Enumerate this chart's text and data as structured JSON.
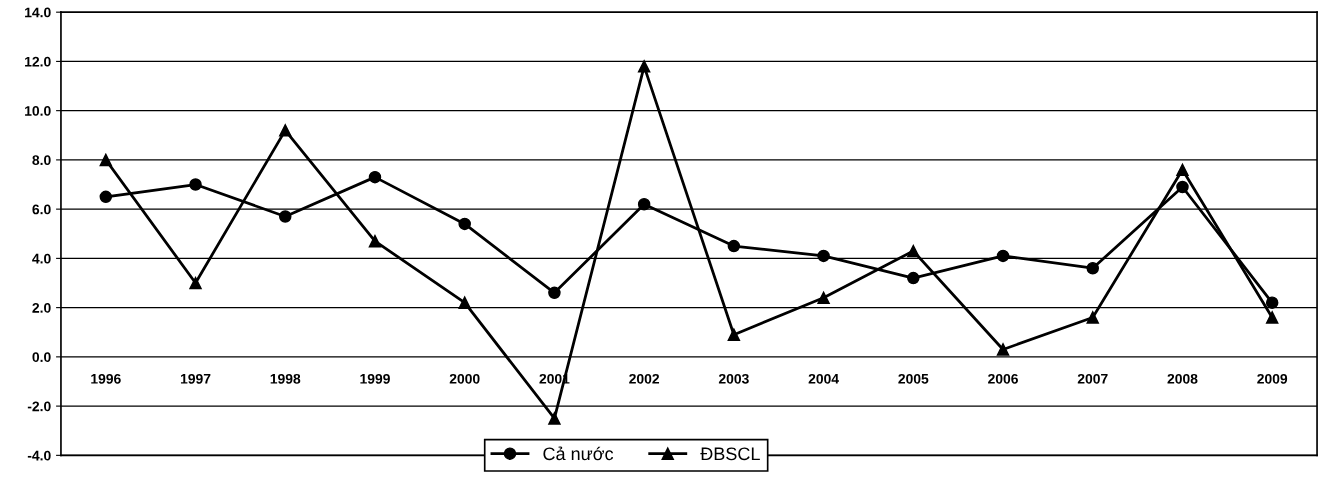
{
  "chart_data": {
    "type": "line",
    "categories": [
      "1996",
      "1997",
      "1998",
      "1999",
      "2000",
      "2001",
      "2002",
      "2003",
      "2004",
      "2005",
      "2006",
      "2007",
      "2008",
      "2009"
    ],
    "series": [
      {
        "name": "Cả nước",
        "color": "#000000",
        "marker": "circle",
        "values": [
          6.5,
          7.0,
          5.7,
          7.3,
          5.4,
          2.6,
          6.2,
          4.5,
          4.1,
          3.2,
          4.1,
          3.6,
          6.9,
          2.2
        ]
      },
      {
        "name": "ĐBSCL",
        "color": "#000000",
        "marker": "triangle",
        "values": [
          8.0,
          3.0,
          9.2,
          4.7,
          2.2,
          -2.5,
          11.8,
          0.9,
          2.4,
          4.3,
          0.3,
          1.6,
          7.6,
          1.6
        ]
      }
    ],
    "ylim": [
      -4,
      14
    ],
    "yticks": [
      {
        "value": -4,
        "label": "-4.0"
      },
      {
        "value": -2,
        "label": "-2.0"
      },
      {
        "value": 0,
        "label": "0.0"
      },
      {
        "value": 2,
        "label": "2.0"
      },
      {
        "value": 4,
        "label": "4.0"
      },
      {
        "value": 6,
        "label": "6.0"
      },
      {
        "value": 8,
        "label": "8.0"
      },
      {
        "value": 10,
        "label": "10.0"
      },
      {
        "value": 12,
        "label": "12.0"
      },
      {
        "value": 14,
        "label": "14.0"
      }
    ],
    "grid": "y",
    "legend": "bottom",
    "line_style": "solid"
  }
}
